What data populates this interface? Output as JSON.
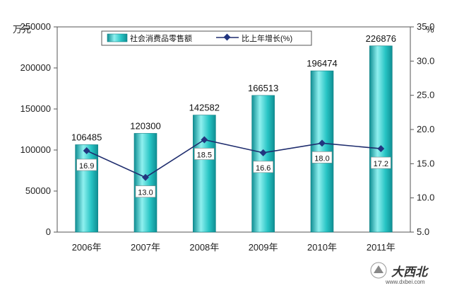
{
  "chart_data": {
    "type": "bar",
    "categories": [
      "2006年",
      "2007年",
      "2008年",
      "2009年",
      "2010年",
      "2011年"
    ],
    "series": [
      {
        "name": "社会消费品零售额",
        "type": "bar",
        "axis": "left",
        "values": [
          106485,
          120300,
          142582,
          166513,
          196474,
          226876
        ],
        "labels": [
          "106485",
          "120300",
          "142582",
          "166513",
          "196474",
          "226876"
        ]
      },
      {
        "name": "比上年增长(%)",
        "type": "line",
        "axis": "right",
        "values": [
          16.9,
          13.0,
          18.5,
          16.6,
          18.0,
          17.2
        ],
        "labels": [
          "16.9",
          "13.0",
          "18.5",
          "16.6",
          "18.0",
          "17.2"
        ]
      }
    ],
    "y_left": {
      "unit": "万元",
      "range": [
        0,
        250000
      ],
      "ticks": [
        "0",
        "50000",
        "100000",
        "150000",
        "200000",
        "250000"
      ]
    },
    "y_right": {
      "unit": "%",
      "range": [
        5,
        35
      ],
      "ticks": [
        "5.0",
        "10.0",
        "15.0",
        "20.0",
        "25.0",
        "30.0",
        "35.0"
      ]
    },
    "grid": false,
    "legend_position": "top-center",
    "colors": {
      "bar_light": "#8ff0ef",
      "bar_mid": "#27c4c4",
      "bar_dark": "#0f8e93",
      "line": "#1f2d6e",
      "marker": "#22357f"
    }
  },
  "watermark": {
    "logo_text": "大西北",
    "url_text": "www.dxbei.com"
  }
}
